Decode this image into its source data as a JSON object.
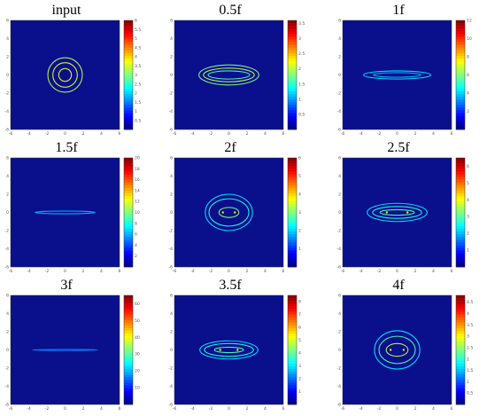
{
  "chart_data": [
    {
      "type": "heatmap",
      "title": "input",
      "xlim": [
        -6,
        6
      ],
      "ylim": [
        -6,
        6
      ],
      "x_ticks": [
        "-6",
        "-4",
        "-2",
        "0",
        "2",
        "4",
        "6"
      ],
      "y_ticks": [
        "6",
        "4",
        "2",
        "0",
        "-2",
        "-4",
        "-6"
      ],
      "colorbar_ticks": [
        0.5,
        1,
        1.5,
        2,
        2.5,
        3,
        3.5,
        4,
        4.5,
        5,
        5.5,
        6
      ],
      "colorbar_max": 6,
      "rings": [
        {
          "rx": 1.9,
          "ry": 1.9,
          "i": 0.55
        },
        {
          "rx": 1.35,
          "ry": 1.35,
          "i": 0.6
        },
        {
          "rx": 0.7,
          "ry": 0.7,
          "i": 0.6
        }
      ]
    },
    {
      "type": "heatmap",
      "title": "0.5f",
      "xlim": [
        -6,
        6
      ],
      "ylim": [
        -6,
        6
      ],
      "x_ticks": [
        "-6",
        "-4",
        "-2",
        "0",
        "2",
        "4",
        "6"
      ],
      "y_ticks": [
        "6",
        "4",
        "2",
        "0",
        "-2",
        "-4",
        "-6"
      ],
      "colorbar_ticks": [
        0.5,
        1,
        1.5,
        2,
        2.5,
        3,
        3.5
      ],
      "colorbar_max": 3.6,
      "rings": [
        {
          "rx": 3.3,
          "ry": 1.1,
          "i": 0.5
        },
        {
          "rx": 2.8,
          "ry": 0.75,
          "i": 0.55
        },
        {
          "rx": 2.3,
          "ry": 0.45,
          "i": 0.45
        }
      ]
    },
    {
      "type": "heatmap",
      "title": "1f",
      "xlim": [
        -6,
        6
      ],
      "ylim": [
        -6,
        6
      ],
      "x_ticks": [
        "-6",
        "-4",
        "-2",
        "0",
        "2",
        "4",
        "6"
      ],
      "y_ticks": [
        "6",
        "4",
        "2",
        "0",
        "-2",
        "-4",
        "-6"
      ],
      "colorbar_ticks": [
        2,
        4,
        6,
        8,
        10,
        12
      ],
      "colorbar_max": 12,
      "rings": [
        {
          "rx": 3.7,
          "ry": 0.45,
          "i": 0.35
        },
        {
          "rx": 2.6,
          "ry": 0.25,
          "i": 0.3
        }
      ]
    },
    {
      "type": "heatmap",
      "title": "1.5f",
      "xlim": [
        -6,
        6
      ],
      "ylim": [
        -6,
        6
      ],
      "x_ticks": [
        "-6",
        "-4",
        "-2",
        "0",
        "2",
        "4",
        "6"
      ],
      "y_ticks": [
        "6",
        "4",
        "2",
        "0",
        "-2",
        "-4",
        "-6"
      ],
      "colorbar_ticks": [
        2,
        4,
        6,
        8,
        10,
        12,
        14,
        16,
        18,
        20
      ],
      "colorbar_max": 20,
      "rings": [
        {
          "rx": 3.3,
          "ry": 0.15,
          "i": 0.3
        }
      ]
    },
    {
      "type": "heatmap",
      "title": "2f",
      "xlim": [
        -6,
        6
      ],
      "ylim": [
        -6,
        6
      ],
      "x_ticks": [
        "-6",
        "-4",
        "-2",
        "0",
        "2",
        "4",
        "6"
      ],
      "y_ticks": [
        "6",
        "4",
        "2",
        "0",
        "-2",
        "-4",
        "-6"
      ],
      "colorbar_ticks": [
        1,
        2,
        3,
        4,
        5,
        6
      ],
      "colorbar_max": 6,
      "rings": [
        {
          "rx": 2.6,
          "ry": 2.0,
          "i": 0.35
        },
        {
          "rx": 2.2,
          "ry": 1.5,
          "i": 0.4
        },
        {
          "rx": 1.1,
          "ry": 0.55,
          "i": 0.5
        }
      ]
    },
    {
      "type": "heatmap",
      "title": "2.5f",
      "xlim": [
        -6,
        6
      ],
      "ylim": [
        -6,
        6
      ],
      "x_ticks": [
        "-6",
        "-4",
        "-2",
        "0",
        "2",
        "4",
        "6"
      ],
      "y_ticks": [
        "6",
        "4",
        "2",
        "0",
        "-2",
        "-4",
        "-6"
      ],
      "colorbar_ticks": [
        1,
        2,
        3,
        4,
        5,
        6
      ],
      "colorbar_max": 6.5,
      "rings": [
        {
          "rx": 3.3,
          "ry": 1.0,
          "i": 0.35
        },
        {
          "rx": 2.7,
          "ry": 0.65,
          "i": 0.4
        },
        {
          "rx": 1.9,
          "ry": 0.3,
          "i": 0.45
        }
      ]
    },
    {
      "type": "heatmap",
      "title": "3f",
      "xlim": [
        -6,
        6
      ],
      "ylim": [
        -6,
        6
      ],
      "x_ticks": [
        "-6",
        "-4",
        "-2",
        "0",
        "2",
        "4",
        "6"
      ],
      "y_ticks": [
        "6",
        "4",
        "2",
        "0",
        "-2",
        "-4",
        "-6"
      ],
      "colorbar_ticks": [
        10,
        20,
        30,
        40,
        50,
        60
      ],
      "colorbar_max": 65,
      "rings": [
        {
          "rx": 3.6,
          "ry": 0.06,
          "i": 0.25
        }
      ]
    },
    {
      "type": "heatmap",
      "title": "3.5f",
      "xlim": [
        -6,
        6
      ],
      "ylim": [
        -6,
        6
      ],
      "x_ticks": [
        "-6",
        "-4",
        "-2",
        "0",
        "2",
        "4",
        "6"
      ],
      "y_ticks": [
        "6",
        "4",
        "2",
        "0",
        "-2",
        "-4",
        "-6"
      ],
      "colorbar_ticks": [
        1,
        2,
        3,
        4,
        5,
        6,
        7,
        8
      ],
      "colorbar_max": 8.5,
      "rings": [
        {
          "rx": 3.2,
          "ry": 1.0,
          "i": 0.35
        },
        {
          "rx": 2.7,
          "ry": 0.7,
          "i": 0.4
        },
        {
          "rx": 1.6,
          "ry": 0.3,
          "i": 0.45
        }
      ]
    },
    {
      "type": "heatmap",
      "title": "4f",
      "xlim": [
        -6,
        6
      ],
      "ylim": [
        -6,
        6
      ],
      "x_ticks": [
        "-6",
        "-4",
        "-2",
        "0",
        "2",
        "4",
        "6"
      ],
      "y_ticks": [
        "6",
        "4",
        "2",
        "0",
        "-2",
        "-4",
        "-6"
      ],
      "colorbar_ticks": [
        0.5,
        1,
        1.5,
        2,
        2.5,
        3,
        3.5,
        4,
        4.5
      ],
      "colorbar_max": 4.8,
      "rings": [
        {
          "rx": 2.5,
          "ry": 2.1,
          "i": 0.35
        },
        {
          "rx": 2.0,
          "ry": 1.5,
          "i": 0.45
        },
        {
          "rx": 1.2,
          "ry": 0.7,
          "i": 0.55
        }
      ]
    }
  ],
  "colors": {
    "background": "#00008f",
    "plot_bg": "#0a0f8c"
  }
}
